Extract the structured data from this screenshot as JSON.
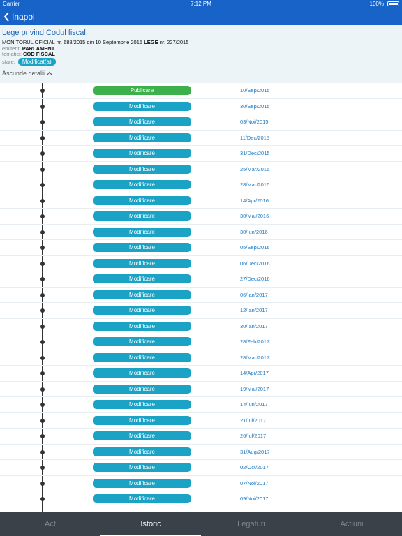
{
  "status_bar": {
    "carrier": "Carrier",
    "time": "7:12 PM",
    "battery": "100%"
  },
  "nav": {
    "back_label": "Inapoi"
  },
  "act": {
    "title": "Lege privind Codul fiscal.",
    "monitor": "MONITORUL OFICIAL nr. 688/2015 din 10 Septembrie 2015",
    "lege_label": "LEGE",
    "lege_value": "nr. 227/2015",
    "emitent_label": "emitent:",
    "emitent": "PARLAMENT",
    "tematici_label": "tematici:",
    "tematici": "COD FISCAL",
    "stare_label": "stare:",
    "stare": "Modificat(a)",
    "toggle_label": "Ascunde detalii"
  },
  "colors": {
    "publicare": "#3cb04a",
    "modificare": "#1ba3c6",
    "nav": "#1763c8"
  },
  "timeline": [
    {
      "type": "publicare",
      "label": "Publicare",
      "date": "10/Sep/2015"
    },
    {
      "type": "modificare",
      "label": "Modificare",
      "date": "30/Sep/2015"
    },
    {
      "type": "modificare",
      "label": "Modificare",
      "date": "03/Noi/2015"
    },
    {
      "type": "modificare",
      "label": "Modificare",
      "date": "11/Dec/2015"
    },
    {
      "type": "modificare",
      "label": "Modificare",
      "date": "31/Dec/2015"
    },
    {
      "type": "modificare",
      "label": "Modificare",
      "date": "25/Mar/2016"
    },
    {
      "type": "modificare",
      "label": "Modificare",
      "date": "28/Mar/2016"
    },
    {
      "type": "modificare",
      "label": "Modificare",
      "date": "14/Apr/2016"
    },
    {
      "type": "modificare",
      "label": "Modificare",
      "date": "30/Mai/2016"
    },
    {
      "type": "modificare",
      "label": "Modificare",
      "date": "30/Iun/2016"
    },
    {
      "type": "modificare",
      "label": "Modificare",
      "date": "05/Sep/2016"
    },
    {
      "type": "modificare",
      "label": "Modificare",
      "date": "06/Dec/2016"
    },
    {
      "type": "modificare",
      "label": "Modificare",
      "date": "27/Dec/2016"
    },
    {
      "type": "modificare",
      "label": "Modificare",
      "date": "06/Ian/2017"
    },
    {
      "type": "modificare",
      "label": "Modificare",
      "date": "12/Ian/2017"
    },
    {
      "type": "modificare",
      "label": "Modificare",
      "date": "30/Ian/2017"
    },
    {
      "type": "modificare",
      "label": "Modificare",
      "date": "28/Feb/2017"
    },
    {
      "type": "modificare",
      "label": "Modificare",
      "date": "28/Mar/2017"
    },
    {
      "type": "modificare",
      "label": "Modificare",
      "date": "14/Apr/2017"
    },
    {
      "type": "modificare",
      "label": "Modificare",
      "date": "19/Mai/2017"
    },
    {
      "type": "modificare",
      "label": "Modificare",
      "date": "14/Iun/2017"
    },
    {
      "type": "modificare",
      "label": "Modificare",
      "date": "21/Iul/2017"
    },
    {
      "type": "modificare",
      "label": "Modificare",
      "date": "26/Iul/2017"
    },
    {
      "type": "modificare",
      "label": "Modificare",
      "date": "31/Aug/2017"
    },
    {
      "type": "modificare",
      "label": "Modificare",
      "date": "02/Oct/2017"
    },
    {
      "type": "modificare",
      "label": "Modificare",
      "date": "07/Noi/2017"
    },
    {
      "type": "modificare",
      "label": "Modificare",
      "date": "09/Noi/2017"
    }
  ],
  "tabs": [
    {
      "label": "Act",
      "active": false
    },
    {
      "label": "Istoric",
      "active": true
    },
    {
      "label": "Legaturi",
      "active": false
    },
    {
      "label": "Actiuni",
      "active": false
    }
  ]
}
